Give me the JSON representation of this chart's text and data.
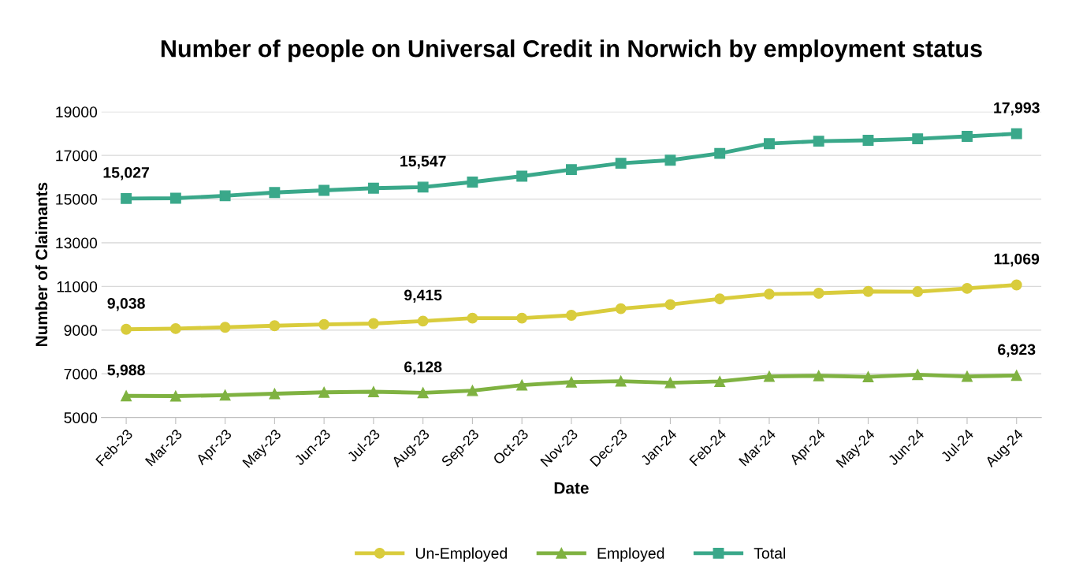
{
  "chart_data": {
    "type": "line",
    "title": "Number of people on Universal Credit in Norwich by employment status",
    "xlabel": "Date",
    "ylabel": "Number of Claimants",
    "categories": [
      "Feb-23",
      "Mar-23",
      "Apr-23",
      "May-23",
      "Jun-23",
      "Jul-23",
      "Aug-23",
      "Sep-23",
      "Oct-23",
      "Nov-23",
      "Dec-23",
      "Jan-24",
      "Feb-24",
      "Mar-24",
      "Apr-24",
      "May-24",
      "Jun-24",
      "Jul-24",
      "Aug-24"
    ],
    "series": [
      {
        "name": "Un-Employed",
        "color": "#d9cc3c",
        "marker": "circle",
        "values": [
          9038,
          9070,
          9130,
          9200,
          9260,
          9300,
          9415,
          9550,
          9550,
          9680,
          9980,
          10170,
          10430,
          10650,
          10690,
          10770,
          10760,
          10910,
          11069
        ],
        "value_labels": [
          "9,038",
          null,
          null,
          null,
          null,
          null,
          "9,415",
          null,
          null,
          null,
          null,
          null,
          null,
          null,
          null,
          null,
          null,
          null,
          "11,069"
        ]
      },
      {
        "name": "Employed",
        "color": "#7fb241",
        "marker": "triangle",
        "values": [
          5988,
          5980,
          6020,
          6090,
          6150,
          6180,
          6128,
          6230,
          6480,
          6620,
          6660,
          6590,
          6650,
          6880,
          6910,
          6860,
          6960,
          6880,
          6923
        ],
        "value_labels": [
          "5,988",
          null,
          null,
          null,
          null,
          null,
          "6,128",
          null,
          null,
          null,
          null,
          null,
          null,
          null,
          null,
          null,
          null,
          null,
          "6,923"
        ]
      },
      {
        "name": "Total",
        "color": "#3aa88a",
        "marker": "square",
        "values": [
          15027,
          15040,
          15150,
          15300,
          15400,
          15500,
          15547,
          15780,
          16050,
          16350,
          16640,
          16780,
          17090,
          17540,
          17650,
          17690,
          17760,
          17870,
          17993
        ],
        "value_labels": [
          "15,027",
          null,
          null,
          null,
          null,
          null,
          "15,547",
          null,
          null,
          null,
          null,
          null,
          null,
          null,
          null,
          null,
          null,
          null,
          "17,993"
        ]
      }
    ],
    "ylim": [
      5000,
      19000
    ],
    "yticks": [
      5000,
      7000,
      9000,
      11000,
      13000,
      15000,
      17000,
      19000
    ],
    "grid": "y",
    "legend": "bottom",
    "line_style": "solid"
  }
}
